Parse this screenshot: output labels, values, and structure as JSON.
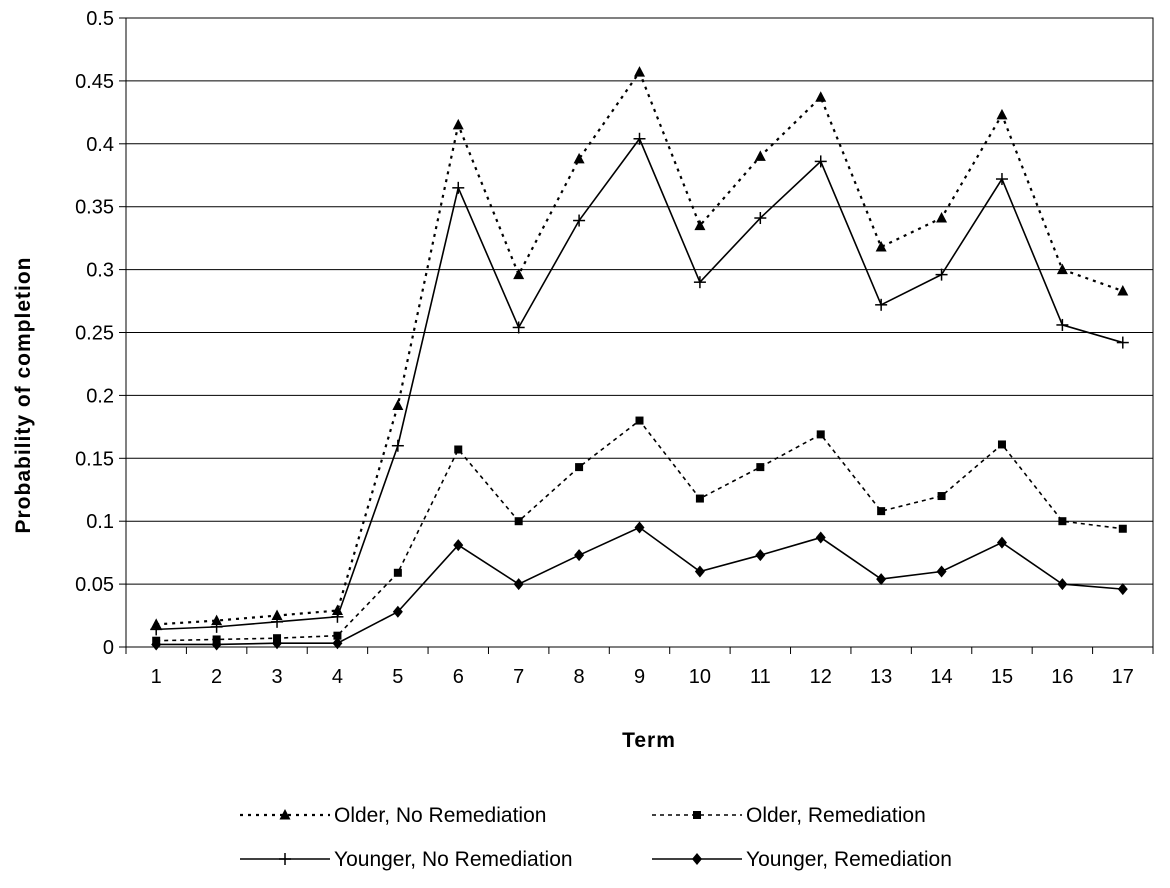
{
  "chart_data": {
    "type": "line",
    "title": "",
    "xlabel": "Term",
    "ylabel": "Probability of completion",
    "ylim": [
      0,
      0.5
    ],
    "yticks": [
      "0",
      "0.05",
      "0.1",
      "0.15",
      "0.2",
      "0.25",
      "0.3",
      "0.35",
      "0.4",
      "0.45",
      "0.5"
    ],
    "categories": [
      "1",
      "2",
      "3",
      "4",
      "5",
      "6",
      "7",
      "8",
      "9",
      "10",
      "11",
      "12",
      "13",
      "14",
      "15",
      "16",
      "17"
    ],
    "grid": "horizontal",
    "legend_position": "bottom",
    "series": [
      {
        "name": "Older, No Remediation",
        "line_style": "dotted",
        "marker": "triangle",
        "values": [
          0.018,
          0.021,
          0.025,
          0.029,
          0.192,
          0.415,
          0.296,
          0.388,
          0.457,
          0.335,
          0.39,
          0.437,
          0.318,
          0.341,
          0.423,
          0.3,
          0.283
        ]
      },
      {
        "name": "Older, Remediation",
        "line_style": "dashed",
        "marker": "square",
        "values": [
          0.005,
          0.006,
          0.007,
          0.009,
          0.059,
          0.157,
          0.1,
          0.143,
          0.18,
          0.118,
          0.143,
          0.169,
          0.108,
          0.12,
          0.161,
          0.1,
          0.094
        ]
      },
      {
        "name": "Younger, No Remediation",
        "line_style": "solid",
        "marker": "plus",
        "values": [
          0.014,
          0.016,
          0.02,
          0.024,
          0.16,
          0.365,
          0.254,
          0.339,
          0.404,
          0.29,
          0.341,
          0.386,
          0.272,
          0.296,
          0.372,
          0.256,
          0.242
        ]
      },
      {
        "name": "Younger, Remediation",
        "line_style": "solid",
        "marker": "diamond",
        "values": [
          0.002,
          0.002,
          0.003,
          0.003,
          0.028,
          0.081,
          0.05,
          0.073,
          0.095,
          0.06,
          0.073,
          0.087,
          0.054,
          0.06,
          0.083,
          0.05,
          0.046
        ]
      }
    ]
  }
}
